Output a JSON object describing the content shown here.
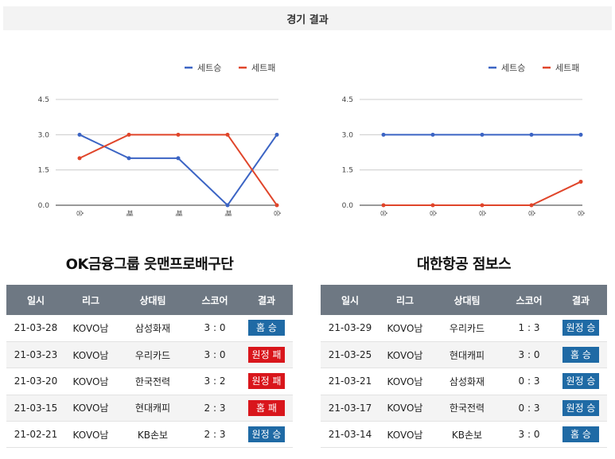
{
  "header": {
    "title": "경기 결과"
  },
  "legend": {
    "win_label": "세트승",
    "loss_label": "세트패"
  },
  "colors": {
    "win": "#3b64c4",
    "loss": "#e0452a",
    "win_badge": "#1f6aa5",
    "loss_badge": "#d9161c"
  },
  "chart_data": [
    {
      "type": "line",
      "categories": [
        "승",
        "패",
        "패",
        "패",
        "승"
      ],
      "yticks": [
        "4.5",
        "3.0",
        "1.5",
        "0.0"
      ],
      "ylim": [
        0,
        4.5
      ],
      "series": [
        {
          "name": "세트승",
          "values": [
            3,
            2,
            2,
            0,
            3
          ]
        },
        {
          "name": "세트패",
          "values": [
            2,
            3,
            3,
            3,
            0
          ]
        }
      ],
      "legend_position": "top-right",
      "grid": true
    },
    {
      "type": "line",
      "categories": [
        "승",
        "승",
        "승",
        "승",
        "승"
      ],
      "yticks": [
        "4.5",
        "3.0",
        "1.5",
        "0.0"
      ],
      "ylim": [
        0,
        4.5
      ],
      "series": [
        {
          "name": "세트승",
          "values": [
            3,
            3,
            3,
            3,
            3
          ]
        },
        {
          "name": "세트패",
          "values": [
            0,
            0,
            0,
            0,
            1
          ]
        }
      ],
      "legend_position": "top-right",
      "grid": true
    }
  ],
  "columns": [
    "일시",
    "리그",
    "상대팀",
    "스코어",
    "결과"
  ],
  "teams": [
    {
      "name": "OK금융그룹 읏맨프로배구단",
      "rows": [
        {
          "date": "21-03-28",
          "league": "KOVO남",
          "opponent": "삼성화재",
          "score": "3 : 0",
          "result": "홈 승",
          "win": true
        },
        {
          "date": "21-03-23",
          "league": "KOVO남",
          "opponent": "우리카드",
          "score": "3 : 0",
          "result": "원정 패",
          "win": false
        },
        {
          "date": "21-03-20",
          "league": "KOVO남",
          "opponent": "한국전력",
          "score": "3 : 2",
          "result": "원정 패",
          "win": false
        },
        {
          "date": "21-03-15",
          "league": "KOVO남",
          "opponent": "현대캐피",
          "score": "2 : 3",
          "result": "홈 패",
          "win": false
        },
        {
          "date": "21-02-21",
          "league": "KOVO남",
          "opponent": "KB손보",
          "score": "2 : 3",
          "result": "원정 승",
          "win": true
        }
      ]
    },
    {
      "name": "대한항공 점보스",
      "rows": [
        {
          "date": "21-03-29",
          "league": "KOVO남",
          "opponent": "우리카드",
          "score": "1 : 3",
          "result": "원정 승",
          "win": true
        },
        {
          "date": "21-03-25",
          "league": "KOVO남",
          "opponent": "현대캐피",
          "score": "3 : 0",
          "result": "홈 승",
          "win": true
        },
        {
          "date": "21-03-21",
          "league": "KOVO남",
          "opponent": "삼성화재",
          "score": "0 : 3",
          "result": "원정 승",
          "win": true
        },
        {
          "date": "21-03-17",
          "league": "KOVO남",
          "opponent": "한국전력",
          "score": "0 : 3",
          "result": "원정 승",
          "win": true
        },
        {
          "date": "21-03-14",
          "league": "KOVO남",
          "opponent": "KB손보",
          "score": "3 : 0",
          "result": "홈 승",
          "win": true
        }
      ]
    }
  ]
}
